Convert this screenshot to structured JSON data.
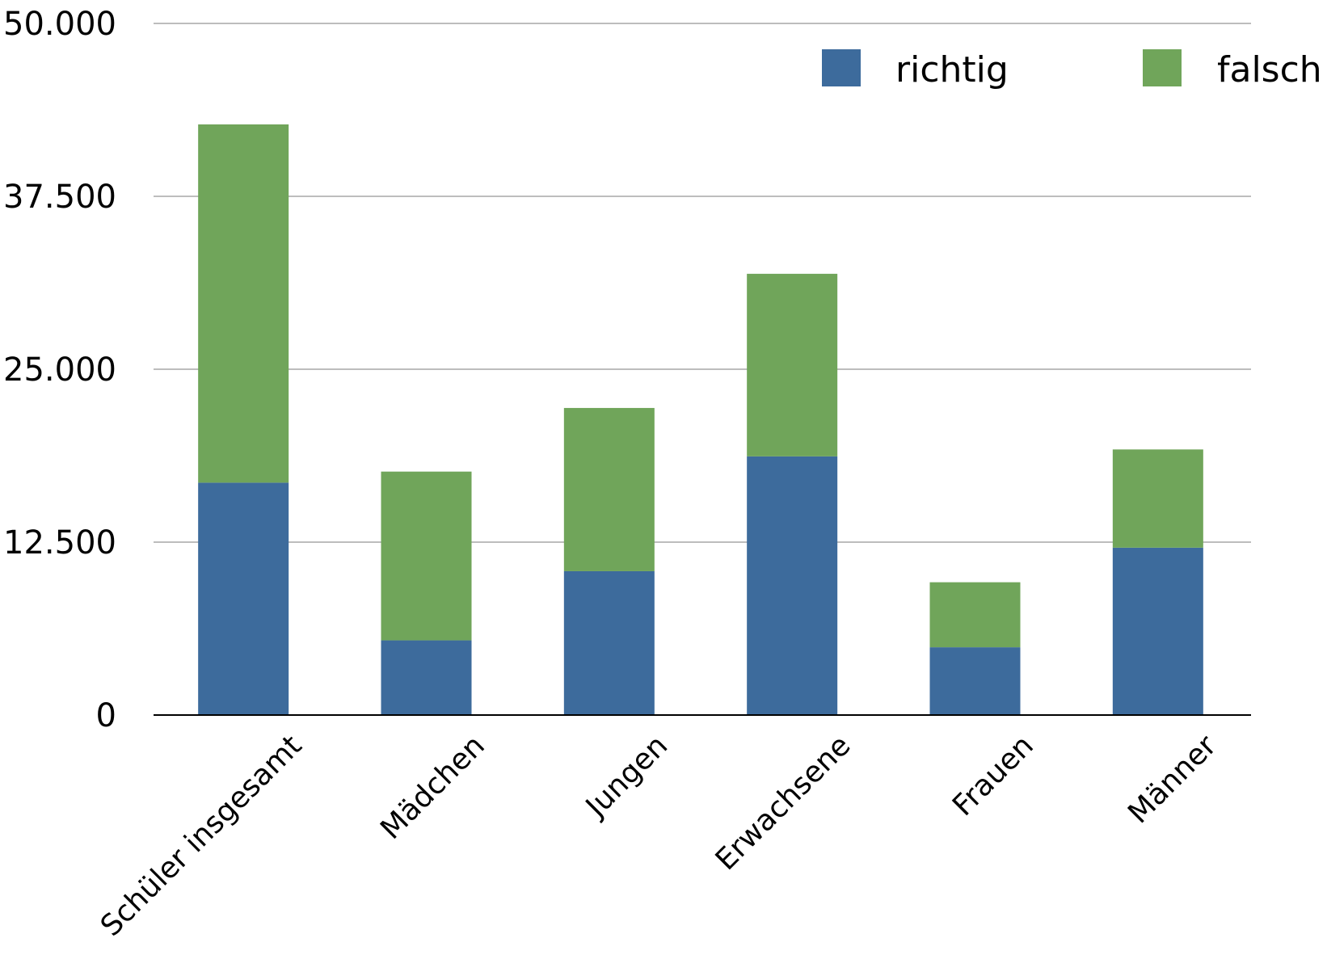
{
  "chart_data": {
    "type": "bar",
    "stacked": true,
    "categories": [
      "Schüler insgesamt",
      "Mädchen",
      "Jungen",
      "Erwachsene",
      "Frauen",
      "Männer"
    ],
    "series": [
      {
        "name": "richtig",
        "color": "#3d6b9c",
        "values": [
          16800,
          5400,
          10400,
          18700,
          4900,
          12100
        ]
      },
      {
        "name": "falsch",
        "color": "#70a55a",
        "values": [
          25900,
          12200,
          11800,
          13200,
          4700,
          7100
        ]
      }
    ],
    "ylim": [
      0,
      50000
    ],
    "yticks": [
      0,
      12500,
      25000,
      37500,
      50000
    ],
    "ytick_labels": [
      "0",
      "12.500",
      "25.000",
      "37.500",
      "50.000"
    ],
    "grid": true,
    "legend_position": "top-right",
    "xlabel": "",
    "ylabel": "",
    "title": ""
  }
}
